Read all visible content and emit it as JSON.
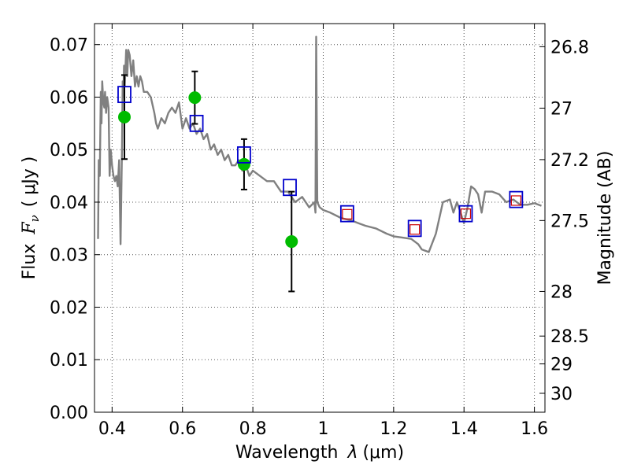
{
  "chart_data": {
    "type": "scatter",
    "xlabel": "Wavelength",
    "xlabel_symbol": "λ",
    "xlabel_unit": "(μm)",
    "ylabel": "Flux",
    "ylabel_symbol": "F",
    "ylabel_subscript": "ν",
    "ylabel_unit": "( μJy )",
    "y2label": "Magnitude (AB)",
    "xlim": [
      0.35,
      1.63
    ],
    "ylim": [
      0.0,
      0.074
    ],
    "grid": true,
    "x_ticks": [
      0.4,
      0.6,
      0.8,
      1.0,
      1.2,
      1.4,
      1.6
    ],
    "x_tick_labels": [
      "0.4",
      "0.6",
      "0.8",
      "1",
      "1.2",
      "1.4",
      "1.6"
    ],
    "y_ticks": [
      0.0,
      0.01,
      0.02,
      0.03,
      0.04,
      0.05,
      0.06,
      0.07
    ],
    "y_tick_labels": [
      "0.00",
      "0.01",
      "0.02",
      "0.03",
      "0.04",
      "0.05",
      "0.06",
      "0.07"
    ],
    "y2_ticks": [
      {
        "label": "26.8",
        "flux": 0.0696
      },
      {
        "label": "27",
        "flux": 0.0579
      },
      {
        "label": "27.2",
        "flux": 0.0481
      },
      {
        "label": "27.5",
        "flux": 0.0365
      },
      {
        "label": "28",
        "flux": 0.023
      },
      {
        "label": "28.5",
        "flux": 0.0145
      },
      {
        "label": "29",
        "flux": 0.0092
      },
      {
        "label": "30",
        "flux": 0.0036
      }
    ],
    "colors": {
      "sed": "#808080",
      "observed": "#00bb00",
      "model_blue": "#0000cc",
      "model_red": "#cc0000",
      "errorbar": "#000000",
      "grid": "#555555"
    },
    "series": [
      {
        "kind": "line",
        "x": [
          0.36,
          0.362,
          0.365,
          0.368,
          0.37,
          0.372,
          0.375,
          0.378,
          0.38,
          0.383,
          0.386,
          0.39,
          0.393,
          0.396,
          0.4,
          0.404,
          0.408,
          0.412,
          0.416,
          0.42,
          0.424,
          0.428,
          0.43,
          0.432,
          0.434,
          0.436,
          0.44,
          0.443,
          0.446,
          0.45,
          0.455,
          0.46,
          0.465,
          0.47,
          0.475,
          0.48,
          0.485,
          0.49,
          0.5,
          0.51,
          0.52,
          0.525,
          0.53,
          0.54,
          0.55,
          0.56,
          0.57,
          0.58,
          0.59,
          0.6,
          0.61,
          0.62,
          0.63,
          0.64,
          0.65,
          0.66,
          0.67,
          0.68,
          0.69,
          0.7,
          0.71,
          0.72,
          0.73,
          0.74,
          0.75,
          0.76,
          0.77,
          0.78,
          0.79,
          0.8,
          0.82,
          0.84,
          0.86,
          0.88,
          0.9,
          0.92,
          0.94,
          0.96,
          0.975,
          0.978,
          0.98,
          0.983,
          0.99,
          1.0,
          1.02,
          1.05,
          1.08,
          1.1,
          1.12,
          1.15,
          1.18,
          1.2,
          1.22,
          1.25,
          1.27,
          1.28,
          1.3,
          1.32,
          1.34,
          1.36,
          1.37,
          1.38,
          1.39,
          1.4,
          1.41,
          1.42,
          1.43,
          1.44,
          1.45,
          1.46,
          1.48,
          1.5,
          1.52,
          1.54,
          1.56,
          1.58,
          1.6,
          1.62
        ],
        "y": [
          0.033,
          0.048,
          0.045,
          0.061,
          0.055,
          0.063,
          0.059,
          0.058,
          0.061,
          0.057,
          0.06,
          0.058,
          0.045,
          0.05,
          0.047,
          0.045,
          0.044,
          0.045,
          0.043,
          0.048,
          0.032,
          0.05,
          0.063,
          0.06,
          0.066,
          0.062,
          0.069,
          0.064,
          0.069,
          0.068,
          0.064,
          0.067,
          0.062,
          0.064,
          0.062,
          0.064,
          0.063,
          0.061,
          0.061,
          0.06,
          0.057,
          0.055,
          0.054,
          0.056,
          0.055,
          0.057,
          0.058,
          0.057,
          0.059,
          0.054,
          0.056,
          0.054,
          0.055,
          0.053,
          0.054,
          0.052,
          0.053,
          0.05,
          0.051,
          0.049,
          0.05,
          0.048,
          0.049,
          0.047,
          0.047,
          0.048,
          0.046,
          0.047,
          0.045,
          0.046,
          0.045,
          0.044,
          0.044,
          0.042,
          0.042,
          0.04,
          0.041,
          0.039,
          0.04,
          0.038,
          0.0715,
          0.04,
          0.039,
          0.0385,
          0.038,
          0.037,
          0.0365,
          0.036,
          0.0355,
          0.035,
          0.034,
          0.0335,
          0.0333,
          0.033,
          0.032,
          0.031,
          0.0305,
          0.034,
          0.04,
          0.0405,
          0.038,
          0.04,
          0.038,
          0.036,
          0.039,
          0.043,
          0.0425,
          0.0415,
          0.038,
          0.042,
          0.042,
          0.0415,
          0.04,
          0.0405,
          0.0395,
          0.0395,
          0.0398,
          0.0393
        ]
      },
      {
        "kind": "points",
        "marker": "circle",
        "x": [
          0.435,
          0.635,
          0.775,
          0.91
        ],
        "y": [
          0.0562,
          0.0599,
          0.0472,
          0.0325
        ],
        "yerr": [
          0.008,
          0.005,
          0.0048,
          0.0095
        ]
      },
      {
        "kind": "points",
        "marker": "square",
        "x": [
          0.435,
          0.64,
          0.775,
          0.905,
          1.068,
          1.26,
          1.405,
          1.548
        ],
        "y": [
          0.0605,
          0.055,
          0.049,
          0.0428,
          0.0378,
          0.035,
          0.0378,
          0.0405
        ]
      },
      {
        "kind": "points",
        "marker": "square-small",
        "x": [
          1.068,
          1.26,
          1.405,
          1.548
        ],
        "y": [
          0.0377,
          0.0348,
          0.0378,
          0.0403
        ]
      }
    ]
  }
}
